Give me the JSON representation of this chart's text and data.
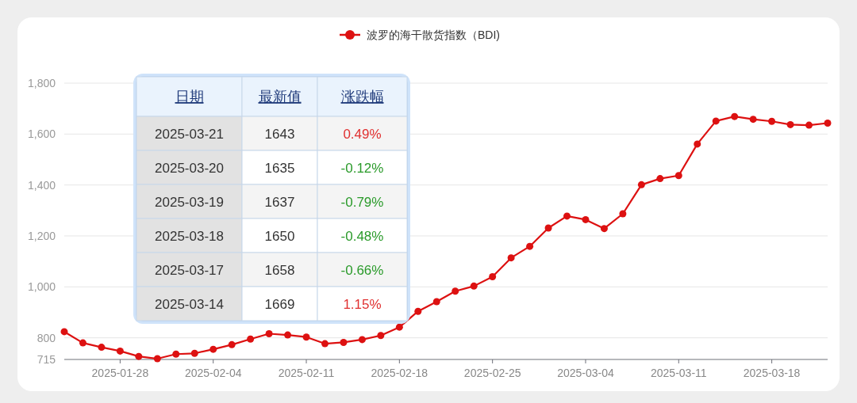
{
  "chart_data": [
    {
      "type": "line",
      "categories": [
        null,
        null,
        null,
        "2025-01-28",
        null,
        null,
        null,
        null,
        "2025-02-04",
        null,
        null,
        null,
        null,
        "2025-02-11",
        null,
        null,
        null,
        null,
        "2025-02-18",
        null,
        null,
        null,
        null,
        "2025-02-25",
        null,
        null,
        null,
        null,
        "2025-03-04",
        null,
        null,
        null,
        null,
        "2025-03-11",
        null,
        null,
        null,
        null,
        "2025-03-18",
        null,
        null,
        null
      ],
      "series": [
        {
          "name": "波罗的海干散货指数（BDI)",
          "color": "#dd1111",
          "values": [
            824,
            780,
            763,
            748,
            727,
            718,
            736,
            739,
            755,
            773,
            795,
            816,
            811,
            803,
            777,
            782,
            793,
            809,
            842,
            904,
            942,
            983,
            1003,
            1040,
            1114,
            1159,
            1231,
            1278,
            1264,
            1229,
            1287,
            1401,
            1425,
            1437,
            1561,
            1651,
            1669,
            1658,
            1650,
            1637,
            1635,
            1643
          ]
        }
      ],
      "ylim": [
        715,
        1800
      ],
      "yticks": [
        715,
        800,
        {
          "value": 1000,
          "label": "1,000"
        },
        {
          "value": 1200,
          "label": "1,200"
        },
        {
          "value": 1400,
          "label": "1,400"
        },
        {
          "value": 1600,
          "label": "1,600"
        },
        {
          "value": 1800,
          "label": "1,800"
        }
      ],
      "grid": "y",
      "legend": "top",
      "marker": "circle",
      "line_style": "solid"
    },
    {
      "type": "other",
      "annotations": [
        "日期",
        "最新值",
        "涨跌幅",
        "2025-03-21",
        "1643",
        "0.49%",
        "2025-03-20",
        "1635",
        "-0.12%",
        "2025-03-19",
        "1637",
        "-0.79%",
        "2025-03-18",
        "1650",
        "-0.48%",
        "2025-03-17",
        "1658",
        "-0.66%",
        "2025-03-14",
        "1669",
        "1.15%"
      ],
      "colors": [
        "#1f3a7a",
        "#1f3a7a",
        "#1f3a7a",
        "#333333",
        "#333333",
        "#e03030",
        "#333333",
        "#333333",
        "#2a9a2a",
        "#333333",
        "#333333",
        "#2a9a2a",
        "#333333",
        "#333333",
        "#2a9a2a",
        "#333333",
        "#333333",
        "#2a9a2a",
        "#333333",
        "#333333",
        "#e03030"
      ]
    }
  ]
}
